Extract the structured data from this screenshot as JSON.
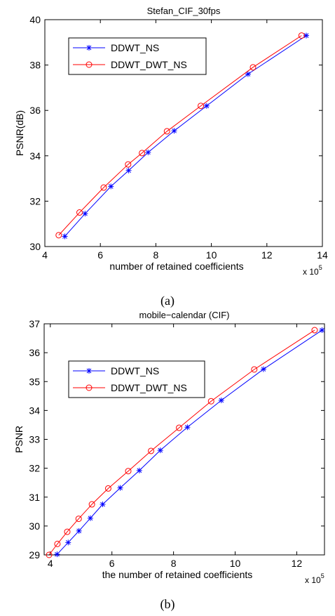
{
  "figure": {
    "panels": [
      {
        "caption": "(a)"
      },
      {
        "caption": "(b)"
      }
    ]
  },
  "chart_data": [
    {
      "type": "line",
      "title": "Stefan_CIF_30fps",
      "xlabel": "number of retained coefficients",
      "ylabel": "PSNR(dB)",
      "x_multiplier_label": "x 10",
      "x_multiplier_exp": "5",
      "xlim": [
        4,
        14
      ],
      "ylim": [
        30,
        40
      ],
      "xticks": [
        4,
        6,
        8,
        10,
        12,
        14
      ],
      "yticks": [
        30,
        32,
        34,
        36,
        38,
        40
      ],
      "grid": false,
      "legend_position": "top-left",
      "series": [
        {
          "name": "DDWT_NS",
          "color": "#0000ff",
          "marker": "asterisk",
          "x": [
            4.72,
            5.45,
            6.38,
            7.02,
            7.72,
            8.66,
            9.83,
            11.32,
            13.42
          ],
          "y": [
            30.45,
            31.45,
            32.65,
            33.35,
            34.15,
            35.1,
            36.2,
            37.6,
            39.3
          ]
        },
        {
          "name": "DDWT_DWT_NS",
          "color": "#ff0000",
          "marker": "circle",
          "x": [
            4.5,
            5.25,
            6.12,
            7.0,
            7.5,
            8.4,
            9.62,
            11.5,
            13.25
          ],
          "y": [
            30.5,
            31.5,
            32.6,
            33.62,
            34.12,
            35.08,
            36.2,
            37.9,
            39.3
          ]
        }
      ]
    },
    {
      "type": "line",
      "title": "mobile−calendar (CIF)",
      "xlabel": "the number of retained coefficients",
      "ylabel": "PSNR",
      "x_multiplier_label": "x 10",
      "x_multiplier_exp": "5",
      "xlim": [
        3.8,
        12.9
      ],
      "ylim": [
        29,
        37
      ],
      "xticks": [
        4,
        6,
        8,
        10,
        12
      ],
      "yticks": [
        29,
        30,
        31,
        32,
        33,
        34,
        35,
        36,
        37
      ],
      "grid": false,
      "legend_position": "top-left",
      "series": [
        {
          "name": "DDWT_NS",
          "color": "#0000ff",
          "marker": "asterisk",
          "x": [
            4.22,
            4.58,
            4.93,
            5.3,
            5.7,
            6.27,
            6.89,
            7.57,
            8.45,
            9.55,
            10.92,
            12.82
          ],
          "y": [
            29.02,
            29.43,
            29.83,
            30.27,
            30.75,
            31.32,
            31.92,
            32.62,
            33.42,
            34.35,
            35.43,
            36.78
          ]
        },
        {
          "name": "DDWT_DWT_NS",
          "color": "#ff0000",
          "marker": "circle",
          "x": [
            3.96,
            4.23,
            4.55,
            4.92,
            5.35,
            5.88,
            6.53,
            7.27,
            8.18,
            9.22,
            10.62,
            12.58
          ],
          "y": [
            29.0,
            29.38,
            29.8,
            30.25,
            30.75,
            31.3,
            31.9,
            32.6,
            33.4,
            34.32,
            35.42,
            36.78
          ]
        }
      ]
    }
  ]
}
